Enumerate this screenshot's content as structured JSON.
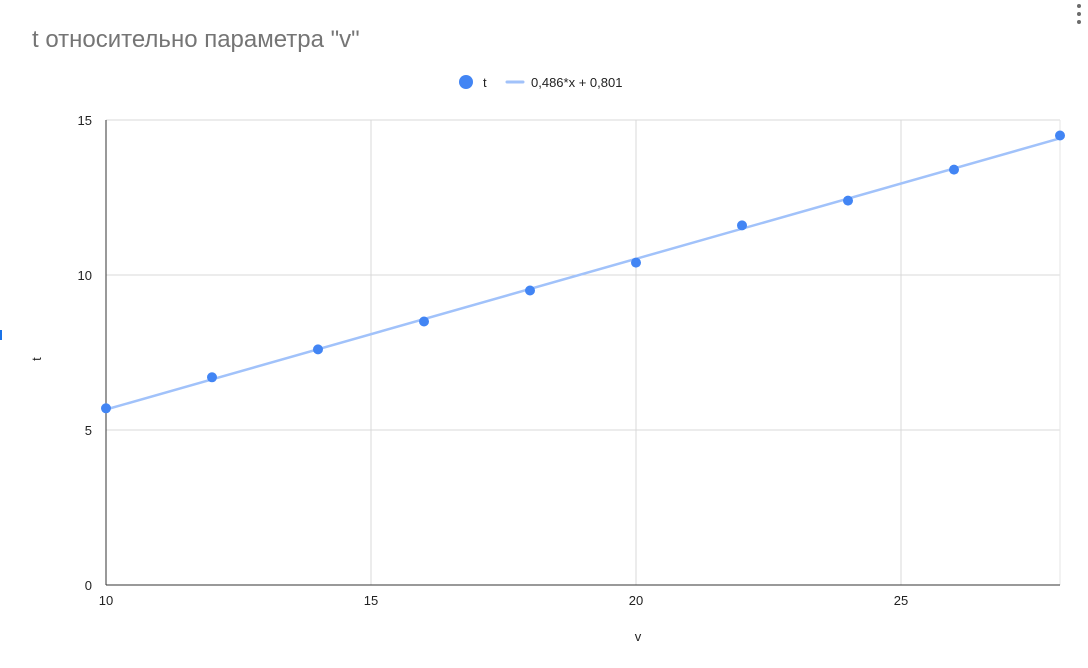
{
  "chart_data": {
    "type": "scatter",
    "title": "t относительно параметра \"v\"",
    "xlabel": "v",
    "ylabel": "t",
    "xlim": [
      10,
      28
    ],
    "ylim": [
      0,
      15
    ],
    "xticks": [
      10,
      15,
      20,
      25
    ],
    "yticks": [
      0,
      5,
      10,
      15
    ],
    "x_tick_labels": [
      "10",
      "15",
      "20",
      "25"
    ],
    "y_tick_labels": [
      "0",
      "5",
      "10",
      "15"
    ],
    "grid": true,
    "legend_position": "top",
    "series": [
      {
        "name": "t",
        "color": "#4285f4",
        "points": [
          {
            "x": 10,
            "y": 5.7
          },
          {
            "x": 12,
            "y": 6.7
          },
          {
            "x": 14,
            "y": 7.6
          },
          {
            "x": 16,
            "y": 8.5
          },
          {
            "x": 18,
            "y": 9.5
          },
          {
            "x": 20,
            "y": 10.4
          },
          {
            "x": 22,
            "y": 11.6
          },
          {
            "x": 24,
            "y": 12.4
          },
          {
            "x": 26,
            "y": 13.4
          },
          {
            "x": 28,
            "y": 14.5
          }
        ]
      }
    ],
    "trendline": {
      "name": "0,486*x + 0,801",
      "slope": 0.486,
      "intercept": 0.801,
      "color": "#a1c2fa"
    }
  }
}
